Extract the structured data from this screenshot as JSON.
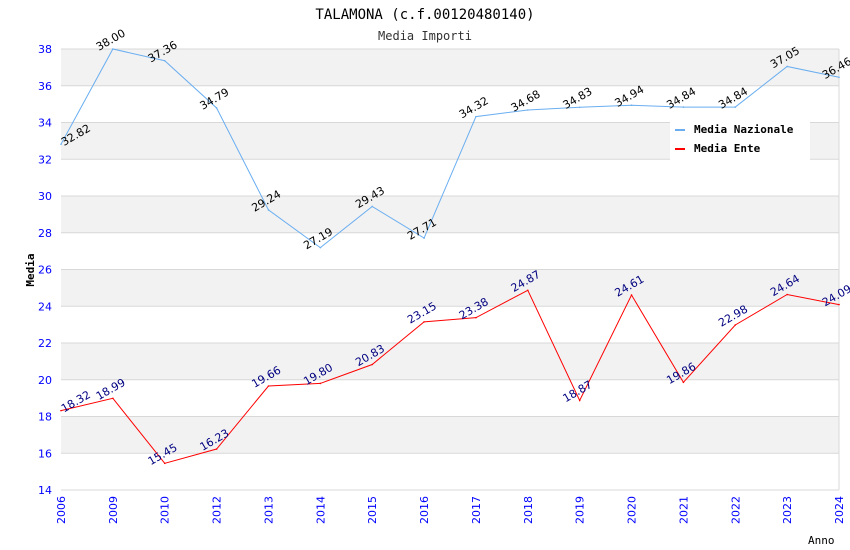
{
  "chart_data": {
    "type": "line",
    "title": "TALAMONA (c.f.00120480140)",
    "subtitle": "Media Importi",
    "xlabel": "Anno",
    "ylabel": "Media",
    "ylim": [
      14,
      38
    ],
    "yticks": [
      14,
      16,
      18,
      20,
      22,
      24,
      26,
      28,
      30,
      32,
      34,
      36,
      38
    ],
    "grid": true,
    "legend_position": "top-right",
    "categories": [
      "2006",
      "2009",
      "2010",
      "2012",
      "2013",
      "2014",
      "2015",
      "2016",
      "2017",
      "2018",
      "2019",
      "2020",
      "2021",
      "2022",
      "2023",
      "2024"
    ],
    "series": [
      {
        "name": "Media Nazionale",
        "color": "#6aaef0",
        "label_color": "#000000",
        "values": [
          32.82,
          38.0,
          37.36,
          34.79,
          29.24,
          27.19,
          29.43,
          27.71,
          34.32,
          34.68,
          34.83,
          34.94,
          34.84,
          34.84,
          37.05,
          36.46
        ]
      },
      {
        "name": "Media Ente",
        "color": "#ff0000",
        "label_color": "#000080",
        "values": [
          18.32,
          18.99,
          15.45,
          16.23,
          19.66,
          19.8,
          20.83,
          23.15,
          23.38,
          24.87,
          18.87,
          24.61,
          19.86,
          22.98,
          24.64,
          24.09
        ]
      }
    ]
  }
}
